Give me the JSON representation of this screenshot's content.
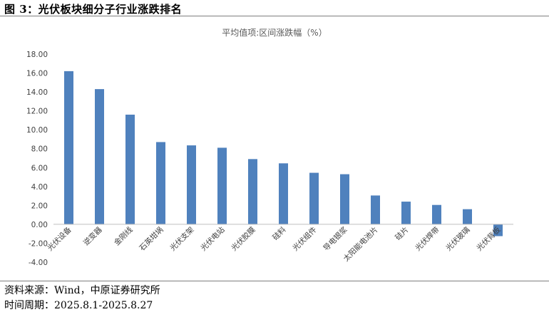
{
  "figure": {
    "title": "图 3：光伏板块细分子行业涨跌排名",
    "source": "资料来源：Wind，中原证券研究所",
    "period": "时间周期：2025.8.1-2025.8.27"
  },
  "chart_data": {
    "type": "bar",
    "title": "平均值项:区间涨跌幅（%）",
    "xlabel": "",
    "ylabel": "",
    "ylim": [
      -4,
      18
    ],
    "yticks": [
      "-4.00",
      "-2.00",
      "0.00",
      "2.00",
      "4.00",
      "6.00",
      "8.00",
      "10.00",
      "12.00",
      "14.00",
      "16.00",
      "18.00"
    ],
    "categories": [
      "光伏设备",
      "逆变器",
      "金刚线",
      "石英坩埚",
      "光伏支架",
      "光伏电站",
      "光伏胶膜",
      "硅料",
      "光伏组件",
      "导电银浆",
      "太阳能电池片",
      "硅片",
      "光伏焊带",
      "光伏玻璃",
      "光伏背板"
    ],
    "values": [
      16.2,
      14.3,
      11.6,
      8.7,
      8.35,
      8.1,
      6.9,
      6.45,
      5.45,
      5.3,
      3.05,
      2.4,
      2.05,
      1.6,
      -1.25
    ],
    "bar_color": "#4f81bd",
    "grid": false,
    "legend": "none"
  }
}
